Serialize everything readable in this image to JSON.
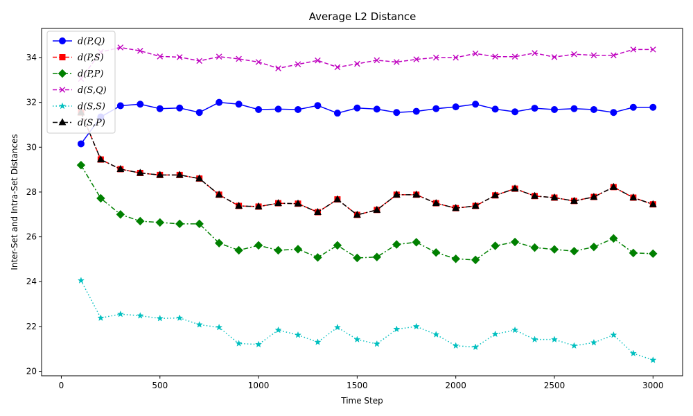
{
  "chart_data": {
    "type": "line",
    "title": "Average L2 Distance",
    "xlabel": "Time Step",
    "ylabel": "Inter-Set and Intra-Set Distances",
    "ylabel_color": "#0000ff",
    "xlim": [
      -100,
      3150
    ],
    "ylim": [
      19.8,
      35.3
    ],
    "xticks": [
      0,
      500,
      1000,
      1500,
      2000,
      2500,
      3000
    ],
    "yticks": [
      20,
      22,
      24,
      26,
      28,
      30,
      32,
      34
    ],
    "grid": false,
    "legend_position": "top-left",
    "x": [
      100,
      200,
      300,
      400,
      500,
      600,
      700,
      800,
      900,
      1000,
      1100,
      1200,
      1300,
      1400,
      1500,
      1600,
      1700,
      1800,
      1900,
      2000,
      2100,
      2200,
      2300,
      2400,
      2500,
      2600,
      2700,
      2800,
      2900,
      3000
    ],
    "series": [
      {
        "name": "d(P,Q)",
        "color": "#0000ff",
        "marker": "circle",
        "dash": "solid",
        "values": [
          30.15,
          31.35,
          31.85,
          31.92,
          31.72,
          31.75,
          31.55,
          32.0,
          31.92,
          31.68,
          31.7,
          31.68,
          31.86,
          31.52,
          31.75,
          31.7,
          31.55,
          31.6,
          31.72,
          31.8,
          31.92,
          31.7,
          31.58,
          31.74,
          31.68,
          31.72,
          31.68,
          31.55,
          31.78,
          31.78
        ]
      },
      {
        "name": "d(P,S)",
        "color": "#ff0000",
        "marker": "square",
        "dash": "dashed",
        "values": [
          31.55,
          29.45,
          29.02,
          28.85,
          28.76,
          28.76,
          28.6,
          27.88,
          27.38,
          27.35,
          27.5,
          27.48,
          27.1,
          27.67,
          26.98,
          27.2,
          27.88,
          27.88,
          27.5,
          27.28,
          27.38,
          27.85,
          28.15,
          27.82,
          27.75,
          27.6,
          27.78,
          28.22,
          27.75,
          27.45
        ]
      },
      {
        "name": "d(P,P)",
        "color": "#008000",
        "marker": "diamond",
        "dash": "dashdot",
        "values": [
          29.2,
          27.72,
          27.0,
          26.7,
          26.64,
          26.58,
          26.58,
          25.72,
          25.4,
          25.62,
          25.4,
          25.45,
          25.08,
          25.62,
          25.06,
          25.1,
          25.66,
          25.76,
          25.3,
          25.02,
          24.97,
          25.6,
          25.77,
          25.52,
          25.44,
          25.36,
          25.55,
          25.93,
          25.28,
          25.25
        ]
      },
      {
        "name": "d(S,Q)",
        "color": "#bf00bf",
        "marker": "x",
        "dash": "dashed",
        "values": [
          33.05,
          34.25,
          34.45,
          34.3,
          34.05,
          34.02,
          33.85,
          34.04,
          33.94,
          33.8,
          33.52,
          33.7,
          33.87,
          33.57,
          33.72,
          33.88,
          33.8,
          33.92,
          34.0,
          34.0,
          34.18,
          34.04,
          34.04,
          34.2,
          34.02,
          34.15,
          34.1,
          34.1,
          34.36,
          34.36
        ]
      },
      {
        "name": "d(S,S)",
        "color": "#00bfbf",
        "marker": "star",
        "dash": "dotted",
        "values": [
          24.05,
          22.38,
          22.55,
          22.48,
          22.36,
          22.38,
          22.08,
          21.96,
          21.24,
          21.2,
          21.84,
          21.62,
          21.3,
          21.96,
          21.42,
          21.22,
          21.88,
          22.0,
          21.64,
          21.14,
          21.08,
          21.66,
          21.84,
          21.42,
          21.42,
          21.14,
          21.28,
          21.62,
          20.8,
          20.5
        ]
      },
      {
        "name": "d(S,P)",
        "color": "#000000",
        "marker": "triangle",
        "dash": "dashdot",
        "values": [
          31.55,
          29.45,
          29.02,
          28.85,
          28.76,
          28.76,
          28.6,
          27.88,
          27.38,
          27.35,
          27.5,
          27.48,
          27.1,
          27.67,
          26.98,
          27.2,
          27.88,
          27.88,
          27.5,
          27.28,
          27.38,
          27.85,
          28.15,
          27.82,
          27.75,
          27.6,
          27.78,
          28.22,
          27.75,
          27.45
        ]
      }
    ]
  }
}
